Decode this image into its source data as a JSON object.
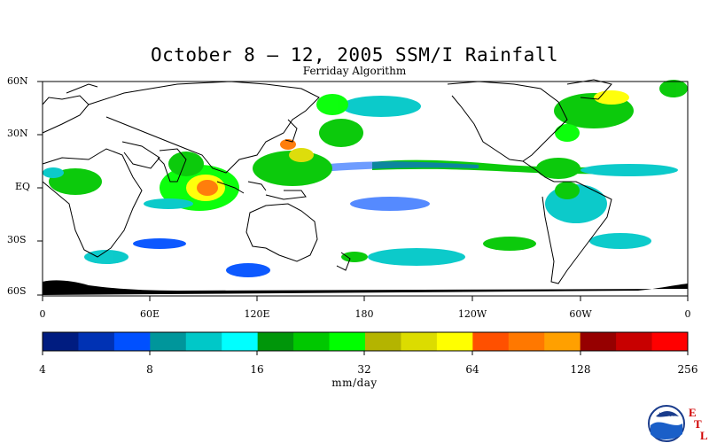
{
  "title": "October 8 – 12, 2005 SSM/I Rainfall",
  "subtitle": "Ferriday Algorithm",
  "map": {
    "lat_labels": [
      "60N",
      "30N",
      "EQ",
      "30S",
      "60S"
    ],
    "lon_labels": [
      "0",
      "60E",
      "120E",
      "180",
      "120W",
      "60W",
      "0"
    ]
  },
  "colorbar": {
    "unit": "mm/day",
    "tick_labels": [
      "4",
      "8",
      "16",
      "32",
      "64",
      "128",
      "256"
    ],
    "colors": [
      "#001c80",
      "#0032b4",
      "#0050ff",
      "#00969b",
      "#00c8c8",
      "#00ffff",
      "#00960a",
      "#00c800",
      "#00ff00",
      "#b4b400",
      "#dcdc00",
      "#ffff00",
      "#ff5000",
      "#ff7800",
      "#ffa000",
      "#960000",
      "#c80000",
      "#ff0000"
    ]
  },
  "logo": {
    "agency": "NOAA",
    "letters": [
      "E",
      "T",
      "L"
    ]
  }
}
